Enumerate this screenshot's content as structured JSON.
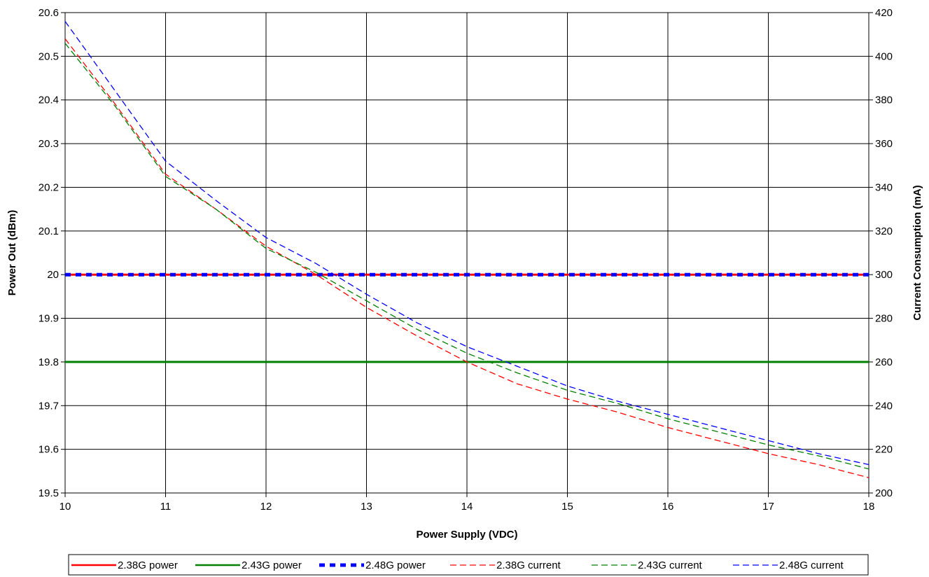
{
  "chart_data": {
    "type": "line",
    "title": "",
    "xlabel": "Power Supply (VDC)",
    "ylabel": "Power Out (dBm)",
    "y2label": "Current Consumption (mA)",
    "xlim": [
      10,
      18
    ],
    "ylim": [
      19.5,
      20.6
    ],
    "y2lim": [
      200,
      420
    ],
    "x_ticks": [
      "10",
      "11",
      "12",
      "13",
      "14",
      "15",
      "16",
      "17",
      "18"
    ],
    "y_ticks": [
      "19.5",
      "19.6",
      "19.7",
      "19.8",
      "19.9",
      "20",
      "20.1",
      "20.2",
      "20.3",
      "20.4",
      "20.5",
      "20.6"
    ],
    "y2_ticks": [
      "200",
      "220",
      "240",
      "260",
      "280",
      "300",
      "320",
      "340",
      "360",
      "380",
      "400",
      "420"
    ],
    "grid": true,
    "legend_position": "bottom",
    "series": [
      {
        "name": "2.38G power",
        "axis": "left",
        "color": "#ff0000",
        "style": "solid",
        "x": [
          10,
          18
        ],
        "y": [
          20.0,
          20.0
        ]
      },
      {
        "name": "2.43G power",
        "axis": "left",
        "color": "#008000",
        "style": "solid",
        "x": [
          10,
          18
        ],
        "y": [
          19.8,
          19.8
        ]
      },
      {
        "name": "2.48G power",
        "axis": "left",
        "color": "#0000ff",
        "style": "dash-thick",
        "x": [
          10,
          18
        ],
        "y": [
          20.0,
          20.0
        ]
      },
      {
        "name": "2.38G current",
        "axis": "right",
        "color": "#ff0000",
        "style": "dashed",
        "x": [
          10,
          10.5,
          11,
          11.5,
          12,
          12.5,
          13,
          13.5,
          14,
          14.5,
          15,
          15.5,
          16,
          16.5,
          17,
          17.5,
          18
        ],
        "y": [
          408,
          378,
          346,
          330,
          313,
          300,
          285,
          272,
          260,
          250,
          243,
          237,
          230,
          224,
          218,
          213,
          207
        ]
      },
      {
        "name": "2.43G current",
        "axis": "right",
        "color": "#008000",
        "style": "dashed",
        "x": [
          10,
          10.5,
          11,
          11.5,
          12,
          12.5,
          13,
          13.5,
          14,
          14.5,
          15,
          15.5,
          16,
          16.5,
          17,
          17.5,
          18
        ],
        "y": [
          406,
          377,
          345,
          330,
          312,
          301,
          288,
          275,
          264,
          255,
          247,
          241,
          234,
          228,
          222,
          217,
          211
        ]
      },
      {
        "name": "2.48G current",
        "axis": "right",
        "color": "#0000ff",
        "style": "dashed",
        "x": [
          10,
          10.5,
          11,
          11.5,
          12,
          12.5,
          13,
          13.5,
          14,
          14.5,
          15,
          15.5,
          16,
          16.5,
          17,
          17.5,
          18
        ],
        "y": [
          416,
          384,
          352,
          334,
          317,
          305,
          291,
          278,
          267,
          258,
          249,
          242,
          236,
          230,
          224,
          218,
          213
        ]
      }
    ]
  }
}
